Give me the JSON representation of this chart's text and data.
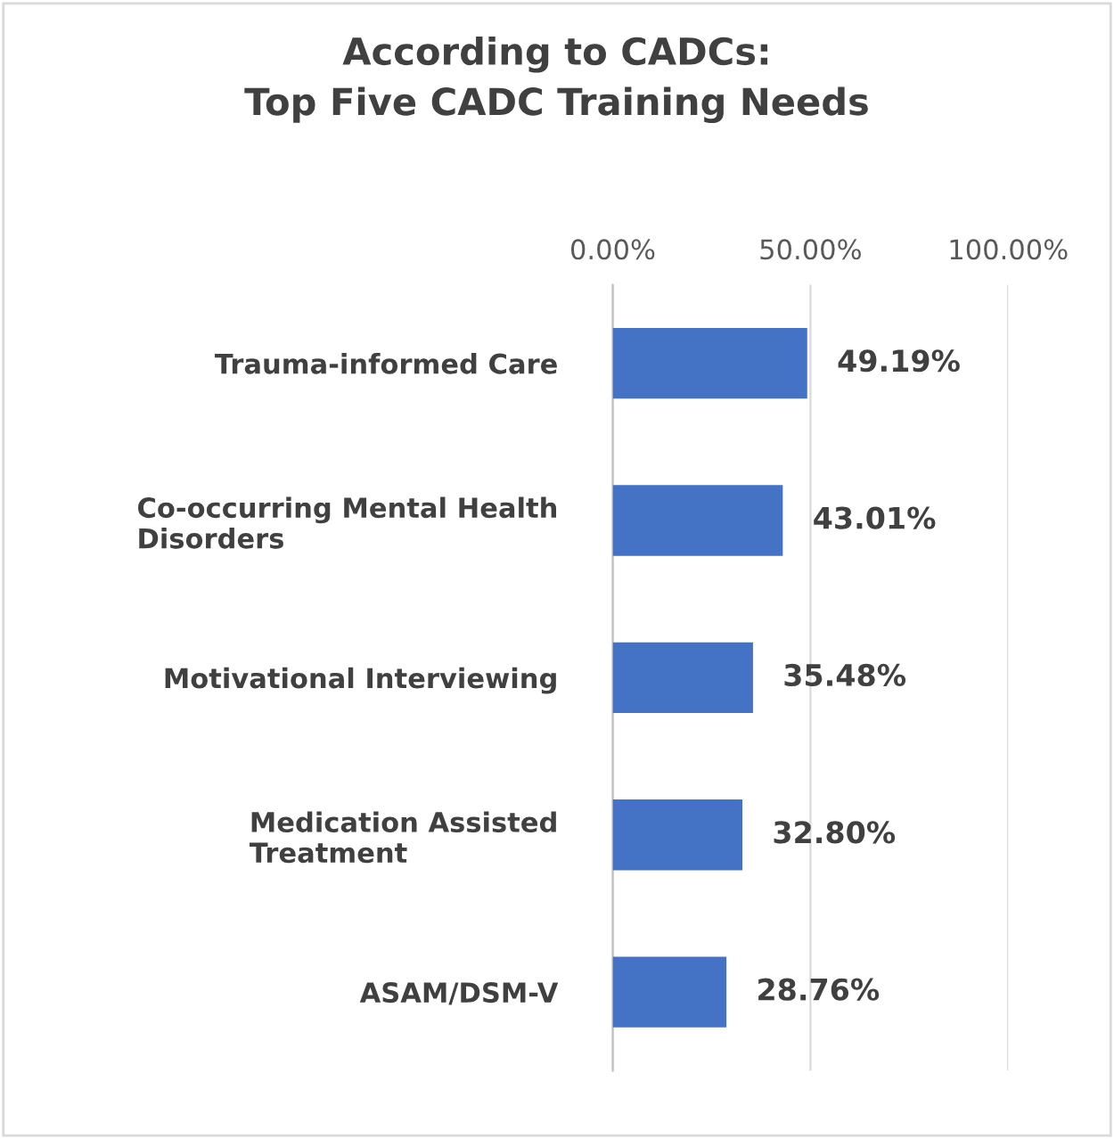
{
  "chart_data": {
    "type": "bar",
    "orientation": "horizontal",
    "title": "According to CADCs:\nTop Five CADC Training Needs",
    "categories": [
      "Trauma-informed Care",
      "Co-occurring Mental Health\nDisorders",
      "Motivational Interviewing",
      "Medication Assisted\nTreatment",
      "ASAM/DSM-V"
    ],
    "values": [
      49.19,
      43.01,
      35.48,
      32.8,
      28.76
    ],
    "value_labels": [
      "49.19%",
      "43.01%",
      "35.48%",
      "32.80%",
      "28.76%"
    ],
    "color": "#4472c4",
    "xlim": [
      0,
      100
    ],
    "xticks": [
      {
        "value": 0,
        "label": "0.00%"
      },
      {
        "value": 50,
        "label": "50.00%"
      },
      {
        "value": 100,
        "label": "100.00%"
      }
    ],
    "grid": "x"
  }
}
